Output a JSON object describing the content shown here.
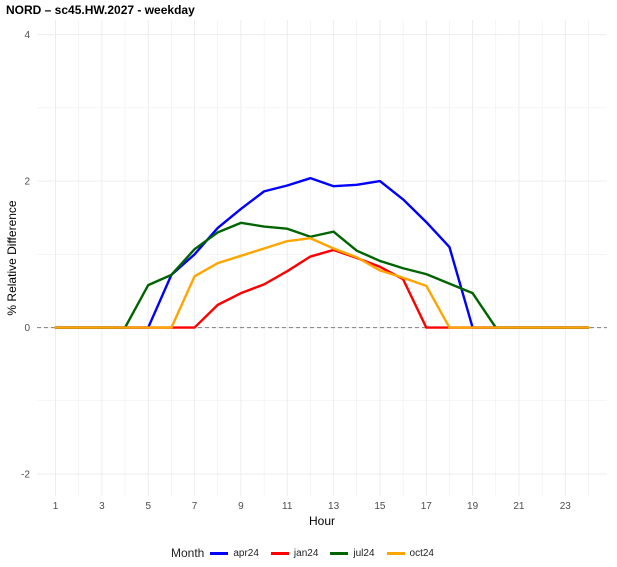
{
  "chart_data": {
    "type": "line",
    "title": "NORD –  sc45.HW.2027 - weekday",
    "xlabel": "Hour",
    "ylabel": "% Relative Difference",
    "xlim": [
      0.2,
      24.8
    ],
    "ylim": [
      -2.3,
      4.2
    ],
    "x_ticks": [
      1,
      3,
      5,
      7,
      9,
      11,
      13,
      15,
      17,
      19,
      21,
      23
    ],
    "y_ticks": [
      -2,
      0,
      2,
      4
    ],
    "grid": true,
    "reference_line": 0,
    "legend": {
      "title": "Month",
      "position": "bottom"
    },
    "x": [
      1,
      2,
      3,
      4,
      5,
      6,
      7,
      8,
      9,
      10,
      11,
      12,
      13,
      14,
      15,
      16,
      17,
      18,
      19,
      20,
      21,
      22,
      23,
      24
    ],
    "series": [
      {
        "name": "apr24",
        "color": "#0000ff",
        "values": [
          0,
          0,
          0,
          0,
          0,
          0.72,
          1.0,
          1.36,
          1.62,
          1.86,
          1.94,
          2.04,
          1.93,
          1.95,
          2.0,
          1.75,
          1.44,
          1.1,
          0,
          0,
          0,
          0,
          0,
          0
        ]
      },
      {
        "name": "jan24",
        "color": "#ff0000",
        "values": [
          0,
          0,
          0,
          0,
          0,
          0,
          0,
          0.31,
          0.47,
          0.59,
          0.77,
          0.97,
          1.06,
          0.95,
          0.83,
          0.66,
          0,
          0,
          0,
          0,
          0,
          0,
          0,
          0
        ]
      },
      {
        "name": "jul24",
        "color": "#006400",
        "values": [
          0,
          0,
          0,
          0,
          0.58,
          0.72,
          1.07,
          1.3,
          1.43,
          1.38,
          1.35,
          1.24,
          1.31,
          1.05,
          0.91,
          0.81,
          0.73,
          0.6,
          0.47,
          0,
          0,
          0,
          0,
          0
        ]
      },
      {
        "name": "oct24",
        "color": "#ffa500",
        "values": [
          0,
          0,
          0,
          0,
          0,
          0,
          0.7,
          0.88,
          0.98,
          1.08,
          1.18,
          1.22,
          1.08,
          0.96,
          0.78,
          0.68,
          0.57,
          0,
          0,
          0,
          0,
          0,
          0,
          0
        ]
      }
    ]
  }
}
